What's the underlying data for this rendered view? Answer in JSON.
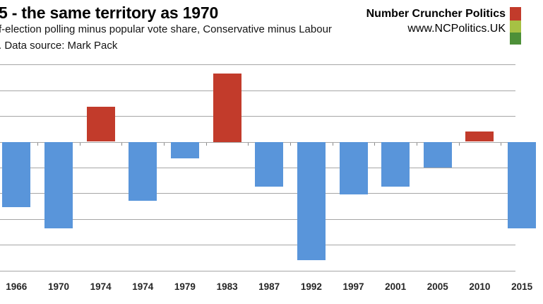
{
  "header": {
    "title": "5 - the same territory as 1970",
    "subtitle": "f-election polling minus popular vote share, Conservative minus Labour",
    "source_line": ". Data source: Mark Pack",
    "brand": {
      "name": "Number Cruncher Politics",
      "url": "www.NCPolitics.UK"
    }
  },
  "logo": {
    "stripe_colors": [
      "#c23b2b",
      "#a6c144",
      "#4d9038"
    ]
  },
  "chart_data": {
    "type": "bar",
    "title": "5 - the same territory as 1970",
    "subtitle": "f-election polling minus popular vote share, Conservative minus Labour",
    "source": ". Data source: Mark Pack",
    "categories": [
      "1966",
      "1970",
      "1974",
      "1974",
      "1979",
      "1983",
      "1987",
      "1992",
      "1997",
      "2001",
      "2005",
      "2010",
      "2015"
    ],
    "values": [
      -5.1,
      -6.7,
      2.7,
      -4.6,
      -1.3,
      5.3,
      -3.5,
      -9.2,
      -4.1,
      -3.5,
      -2.0,
      0.8,
      -6.7
    ],
    "xlabel": "",
    "ylabel": "",
    "ylim": [
      -10,
      6
    ],
    "gridline_step": 2,
    "grid": true,
    "legend_position": "none",
    "positive_color": "#c23b2b",
    "negative_color": "#5995da",
    "clipped": {
      "y_axis_labels": "not visible (image cropped at left edge)",
      "last_x_label": "partially visible at right edge"
    }
  }
}
